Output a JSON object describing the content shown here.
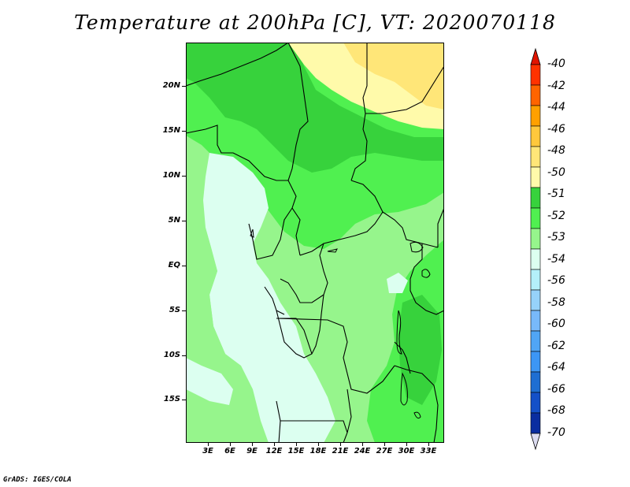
{
  "title": "Temperature at 200hPa [C], VT: 2020070118",
  "credit": "GrADS: IGES/COLA",
  "map": {
    "region": "Central Africa",
    "lon_range": [
      0,
      35
    ],
    "lat_range": [
      -20,
      25
    ],
    "lat_labels": [
      "20N",
      "15N",
      "10N",
      "5N",
      "EQ",
      "5S",
      "10S",
      "15S"
    ],
    "lon_labels": [
      "3E",
      "6E",
      "9E",
      "12E",
      "15E",
      "18E",
      "21E",
      "24E",
      "27E",
      "30E",
      "33E"
    ]
  },
  "legend": {
    "top_cap_color": "#e11400",
    "bottom_cap_color": "#dcdcf0",
    "colors": [
      "#e11400",
      "#ff3200",
      "#ff6400",
      "#ffa000",
      "#ffc83c",
      "#ffe678",
      "#fffaaa",
      "#37d23c",
      "#50f050",
      "#96f58c",
      "#dcfff0",
      "#b4f0fa",
      "#96d2fa",
      "#78b9fa",
      "#50a5f5",
      "#3c96f5",
      "#1e6ed2",
      "#1450c8",
      "#0a2da0",
      "#000a6e"
    ],
    "labels": [
      "-40",
      "-42",
      "-44",
      "-46",
      "-48",
      "-50",
      "-51",
      "-52",
      "-53",
      "-54",
      "-56",
      "-58",
      "-60",
      "-62",
      "-64",
      "-66",
      "-68",
      "-70"
    ]
  }
}
